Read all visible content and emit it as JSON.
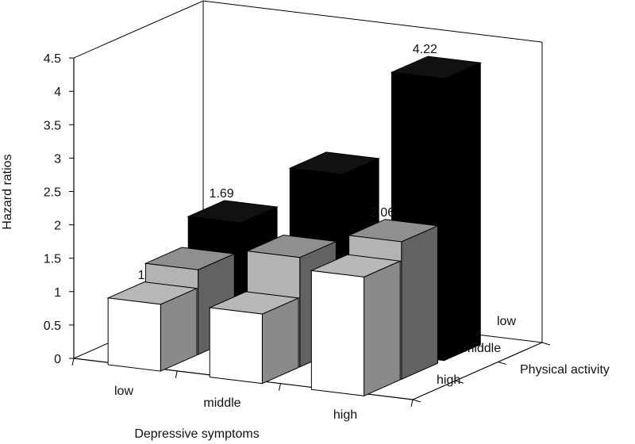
{
  "chart_data": {
    "type": "bar",
    "subtype": "3d-column",
    "title": "",
    "ylabel": "Hazard ratios",
    "xlabel": "Depressive symptoms",
    "zlabel": "Physical activity",
    "ylim": [
      0,
      4.5
    ],
    "yticks": [
      "0",
      "0.5",
      "1",
      "1.5",
      "2",
      "2.5",
      "3",
      "3.5",
      "4",
      "4.5"
    ],
    "categories": [
      "low",
      "middle",
      "high"
    ],
    "depth_categories": [
      "low",
      "middle",
      "high"
    ],
    "grid": false,
    "series": [
      {
        "values": [
          1.69,
          2.6,
          4.22
        ],
        "color": "#000000",
        "data_labels": [
          "1.69",
          "",
          "4.22"
        ]
      },
      {
        "values": [
          1.27,
          1.64,
          2.06
        ],
        "color": "#b3b3b3",
        "data_labels": [
          "",
          "",
          "2.06"
        ]
      },
      {
        "values": [
          1,
          1.04,
          1.78
        ],
        "color": "#ffffff",
        "data_labels": [
          "1",
          "",
          ""
        ]
      }
    ]
  }
}
